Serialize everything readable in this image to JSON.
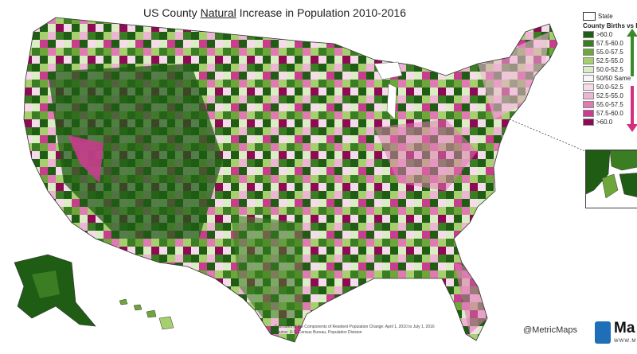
{
  "title": {
    "before": "US County ",
    "underlined": "Natural",
    "after": " Increase in Population 2010-2016"
  },
  "legend": {
    "state_label": "State",
    "heading": "County Births vs Deaths",
    "items": [
      {
        "label": ">60.0",
        "color": "#1f5c14"
      },
      {
        "label": "57.5-60.0",
        "color": "#3a7d22"
      },
      {
        "label": "55.0-57.5",
        "color": "#6ea63b"
      },
      {
        "label": "52.5-55.0",
        "color": "#a6cf6e"
      },
      {
        "label": "50.0-52.5",
        "color": "#dbedc4"
      },
      {
        "label": "50/50 Same",
        "color": "#f7f7f7"
      },
      {
        "label": "50.0-52.5",
        "color": "#f6dcea"
      },
      {
        "label": "52.5-55.0",
        "color": "#eeb4d3"
      },
      {
        "label": "55.0-57.5",
        "color": "#e07ab3"
      },
      {
        "label": "57.5-60.0",
        "color": "#c93d8e"
      },
      {
        "label": ">60.0",
        "color": "#8e0a55"
      }
    ],
    "arrow_up_color": "#3a8a2a",
    "arrow_down_color": "#d0307f"
  },
  "credit": "@MetricMaps",
  "logo": {
    "text": "Ma",
    "url": "WWW.M"
  },
  "source": {
    "line1": "Estimates of the Components of Resident Population Change: April 1, 2010 to July 1, 2016",
    "line2": "Source: U.S. Census Bureau, Population Division"
  }
}
